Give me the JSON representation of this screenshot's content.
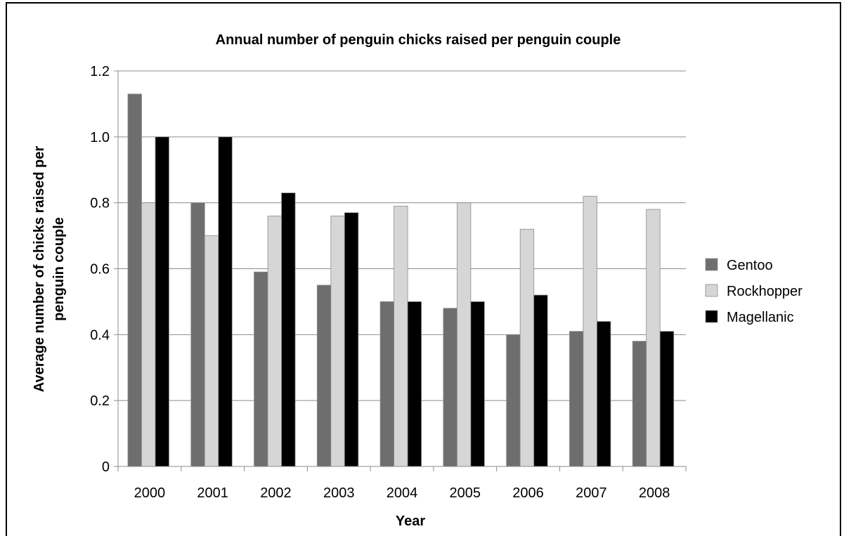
{
  "chart_data": {
    "type": "bar",
    "title": "Annual number of penguin chicks raised per penguin couple",
    "xlabel": "Year",
    "ylabel_lines": [
      "Average number of chicks raised per",
      "penguin couple"
    ],
    "categories": [
      "2000",
      "2001",
      "2002",
      "2003",
      "2004",
      "2005",
      "2006",
      "2007",
      "2008"
    ],
    "ylim": [
      0,
      1.2
    ],
    "yticks": [
      "0",
      "0.2",
      "0.4",
      "0.6",
      "0.8",
      "1.0",
      "1.2"
    ],
    "ytick_values": [
      0,
      0.2,
      0.4,
      0.6,
      0.8,
      1.0,
      1.2
    ],
    "grid": true,
    "legend_position": "right",
    "series": [
      {
        "name": "Gentoo",
        "color": "#6e6e6e",
        "values": [
          1.13,
          0.8,
          0.59,
          0.55,
          0.5,
          0.48,
          0.4,
          0.41,
          0.38
        ]
      },
      {
        "name": "Rockhopper",
        "color": "#d6d6d6",
        "values": [
          0.8,
          0.7,
          0.76,
          0.76,
          0.79,
          0.8,
          0.72,
          0.82,
          0.78
        ]
      },
      {
        "name": "Magellanic",
        "color": "#000000",
        "values": [
          1.0,
          1.0,
          0.83,
          0.77,
          0.5,
          0.5,
          0.52,
          0.44,
          0.41
        ]
      }
    ]
  }
}
